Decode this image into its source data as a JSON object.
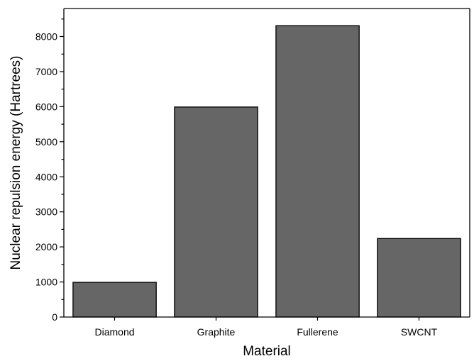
{
  "chart_data": {
    "type": "bar",
    "title": "",
    "xlabel": "Material",
    "ylabel": "Nuclear repulsion energy (Hartrees)",
    "categories": [
      "Diamond",
      "Graphite",
      "Fullerene",
      "SWCNT"
    ],
    "values": [
      990,
      5990,
      8310,
      2240
    ],
    "ylim": [
      0,
      8800
    ],
    "yticks": [
      0,
      1000,
      2000,
      3000,
      4000,
      5000,
      6000,
      7000,
      8000
    ],
    "yticks_minor_step": 500,
    "grid": false,
    "legend": "none",
    "bar_color": "#666666",
    "bar_edge_color": "#000000"
  }
}
